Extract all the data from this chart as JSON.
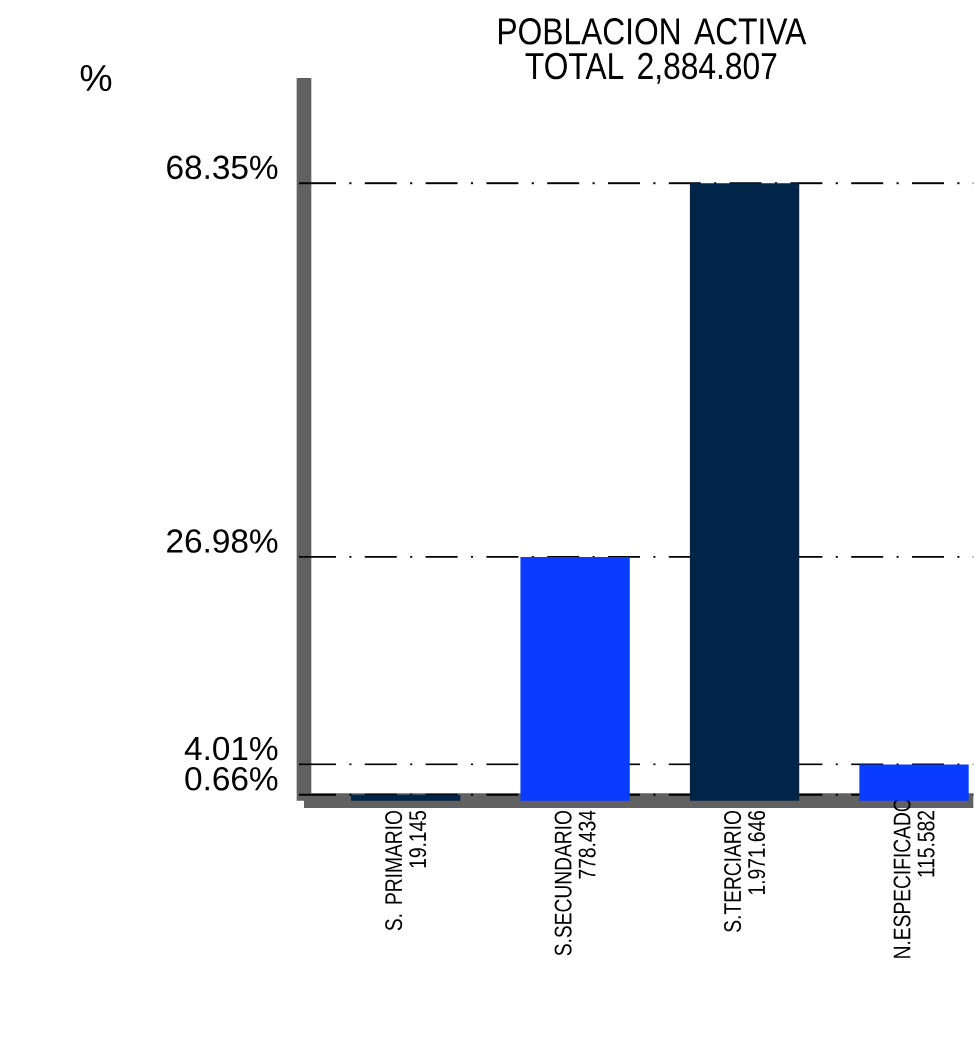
{
  "chart_data": {
    "type": "bar",
    "title": "POBLACION ACTIVA TOTAL 2,884.807",
    "ylabel": "%",
    "categories": [
      "S. PRIMARIO 19.145",
      "S.SECUNDARIO 778.434",
      "S.TERCIARIO 1.971.646",
      "N.ESPECIFICADO 115.582"
    ],
    "values": [
      0.66,
      26.98,
      68.35,
      4.01
    ],
    "colors": [
      "#012548",
      "#0a3cff",
      "#012548",
      "#0a3cff"
    ],
    "ylim": [
      0,
      80
    ],
    "yticks": [
      {
        "value": 0.66,
        "label": "0.66%"
      },
      {
        "value": 4.01,
        "label": "4.01%"
      },
      {
        "value": 26.98,
        "label": "26.98%"
      },
      {
        "value": 68.35,
        "label": "68.35%"
      }
    ],
    "ref_lines": [
      {
        "axis": "y",
        "value": 0.66,
        "line_style": "dashed",
        "color": "#000000"
      },
      {
        "axis": "y",
        "value": 4.01,
        "line_style": "dashed",
        "color": "#000000"
      },
      {
        "axis": "y",
        "value": 26.98,
        "line_style": "dashed",
        "color": "#000000"
      },
      {
        "axis": "y",
        "value": 68.35,
        "line_style": "dashed",
        "color": "#000000"
      }
    ],
    "grid": false
  }
}
